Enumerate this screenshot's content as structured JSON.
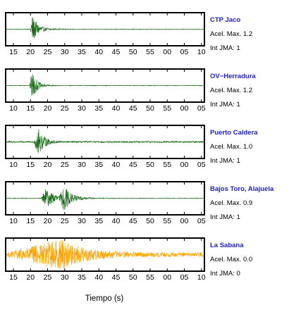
{
  "chart_data": [
    {
      "type": "line",
      "station": "CTP Jaco",
      "accel_label": "Acel. Max. 1.2",
      "jma_label": "Int JMA: 1",
      "color": "#1a6b1a",
      "tick_labels": [
        "15",
        "20",
        "25",
        "30",
        "35",
        "40",
        "45",
        "50",
        "55",
        "00",
        "05",
        "10"
      ],
      "signal": {
        "onset": 12,
        "peak": 13,
        "peak_amp": 0.92,
        "decay": 3.0,
        "noise": 0.02,
        "secondary_onset": null,
        "secondary_amp": 0
      }
    },
    {
      "type": "line",
      "station": "OV−Herradura",
      "accel_label": "Acel. Max. 1.2",
      "jma_label": "Int JMA: 1",
      "color": "#1a6b1a",
      "tick_labels": [
        "10",
        "15",
        "20",
        "25",
        "30",
        "35",
        "40",
        "45",
        "50",
        "55",
        "00",
        "05"
      ],
      "signal": {
        "onset": 11.8,
        "peak": 13,
        "peak_amp": 0.95,
        "decay": 2.5,
        "noise": 0.02,
        "secondary_onset": null,
        "secondary_amp": 0
      }
    },
    {
      "type": "line",
      "station": "Puerto Caldera",
      "accel_label": "Acel. Max. 1.0",
      "jma_label": "Int JMA: 1",
      "color": "#1a6b1a",
      "tick_labels": [
        "10",
        "15",
        "20",
        "25",
        "30",
        "35",
        "40",
        "45",
        "50",
        "55",
        "00",
        "05"
      ],
      "signal": {
        "onset": 14,
        "peak": 16,
        "peak_amp": 0.92,
        "decay": 3.0,
        "noise": 0.05,
        "secondary_onset": null,
        "secondary_amp": 0
      }
    },
    {
      "type": "line",
      "station": "Bajos Toro, Alajuela",
      "accel_label": "Acel. Max. 0.9",
      "jma_label": "Int JMA: 1",
      "color": "#1a6b1a",
      "tick_labels": [
        "10",
        "15",
        "20",
        "25",
        "30",
        "35",
        "40",
        "45",
        "50",
        "55",
        "00",
        "05"
      ],
      "signal": {
        "onset": 17.5,
        "peak": 20,
        "peak_amp": 0.62,
        "decay": 5.0,
        "noise": 0.02,
        "secondary_onset": 27,
        "secondary_amp": 0.75
      }
    },
    {
      "type": "line",
      "station": "La Sabana",
      "accel_label": "Acel. Max. 0.0",
      "jma_label": "Int JMA: 0",
      "color": "#ffa500",
      "tick_labels": [
        "15",
        "20",
        "25",
        "30",
        "35",
        "40",
        "45",
        "50",
        "55",
        "00",
        "05",
        "10"
      ],
      "signal": {
        "onset": 0,
        "peak": 28,
        "peak_amp": 0.9,
        "decay": 12,
        "noise": 0.14,
        "secondary_onset": null,
        "secondary_amp": 0
      }
    }
  ],
  "xlabel": "Tiempo (s)"
}
